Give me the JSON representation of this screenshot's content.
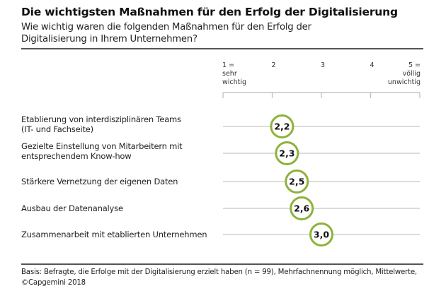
{
  "chart_data": {
    "type": "scatter",
    "title": "Die wichtigsten Maßnahmen für den Erfolg der Digitalisierung",
    "subtitle": "Wie wichtig waren die folgenden Maßnahmen für den Erfolg der Digitalisierung in Ihrem Unternehmen?",
    "xlabel": "",
    "ylabel": "",
    "xlim": [
      1,
      5
    ],
    "x_ticks": [
      {
        "value": 1,
        "label": [
          "1 =",
          "sehr",
          "wichtig"
        ],
        "align": "start"
      },
      {
        "value": 2,
        "label": [
          "2"
        ],
        "align": "start"
      },
      {
        "value": 3,
        "label": [
          "3"
        ],
        "align": "start"
      },
      {
        "value": 4,
        "label": [
          "4"
        ],
        "align": "start"
      },
      {
        "value": 5,
        "label": [
          "5 =",
          "völlig",
          "unwichtig"
        ],
        "align": "end"
      }
    ],
    "categories": [
      [
        "Etablierung von interdisziplinären Teams",
        "(IT- und Fachseite)"
      ],
      [
        "Gezielte Einstellung von Mitarbeitern mit",
        "entsprechendem Know-how"
      ],
      [
        "Stärkere Vernetzung der eigenen Daten"
      ],
      [
        "Ausbau der Datenanalyse"
      ],
      [
        "Zusammenarbeit mit etablierten Unternehmen"
      ]
    ],
    "values": [
      2.2,
      2.3,
      2.5,
      2.6,
      3.0
    ],
    "value_labels": [
      "2,2",
      "2,3",
      "2,5",
      "2,6",
      "3,0"
    ],
    "grid": false,
    "legend": "none",
    "colors": {
      "marker_stroke": "#8cb33a",
      "line": "#c8c8c8",
      "axis": "#bbbbbb"
    }
  },
  "footnote": {
    "line1": "Basis: Befragte, die Erfolge mit der Digitalisierung erzielt haben (n = 99), Mehrfachnennung möglich, Mittelwerte,",
    "line2": "©Capgemini 2018"
  }
}
